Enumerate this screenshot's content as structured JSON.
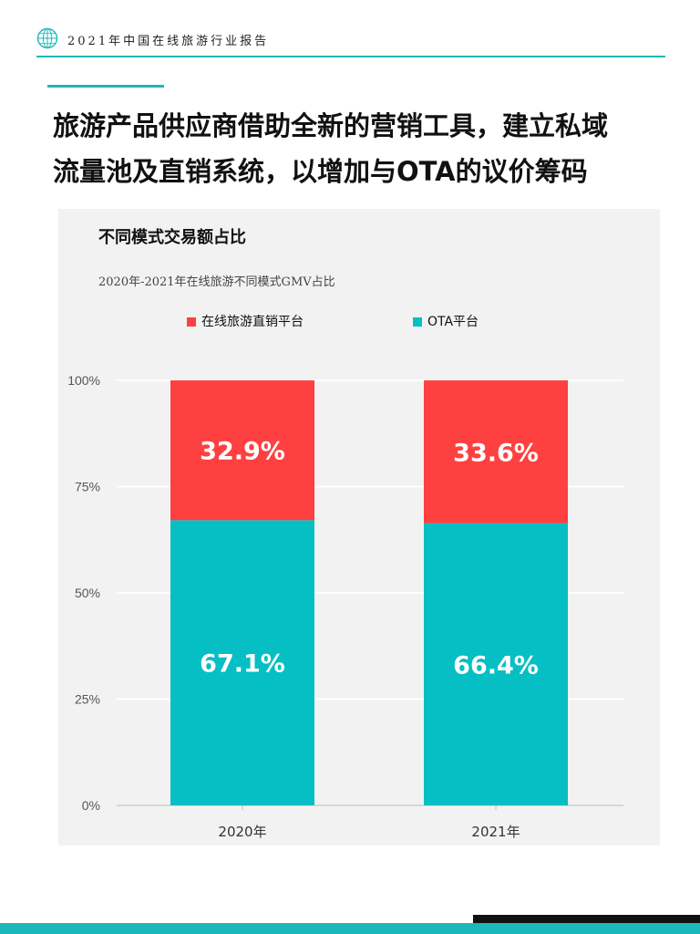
{
  "header": {
    "text": "2021年中国在线旅游行业报告",
    "logo_icon": "globe-icon"
  },
  "title": {
    "line1": "旅游产品供应商借助全新的营销工具，建立私域",
    "line2": "流量池及直销系统，以增加与OTA的议价筹码"
  },
  "chart_heading": "不同模式交易额占比",
  "chart_data": {
    "type": "bar",
    "stacked": true,
    "title": "2020年-2021年在线旅游不同模式GMV占比",
    "categories": [
      "2020年",
      "2021年"
    ],
    "series": [
      {
        "name": "OTA平台",
        "values": [
          67.1,
          66.4
        ],
        "labels": [
          "67.1%",
          "66.4%"
        ],
        "color": "#05bfc4"
      },
      {
        "name": "在线旅游直销平台",
        "values": [
          32.9,
          33.6
        ],
        "labels": [
          "32.9%",
          "33.6%"
        ],
        "color": "#ff4040"
      }
    ],
    "legend_order": [
      "在线旅游直销平台",
      "OTA平台"
    ],
    "legend_position": "top",
    "ylim": [
      0,
      100
    ],
    "yticks": [
      "0%",
      "25%",
      "50%",
      "75%",
      "100%"
    ],
    "xlabel": "",
    "ylabel": "",
    "grid": true
  },
  "colors": {
    "accent": "#1bb8bb",
    "panel_bg": "#f2f2f2",
    "dark_bar": "#111111"
  }
}
